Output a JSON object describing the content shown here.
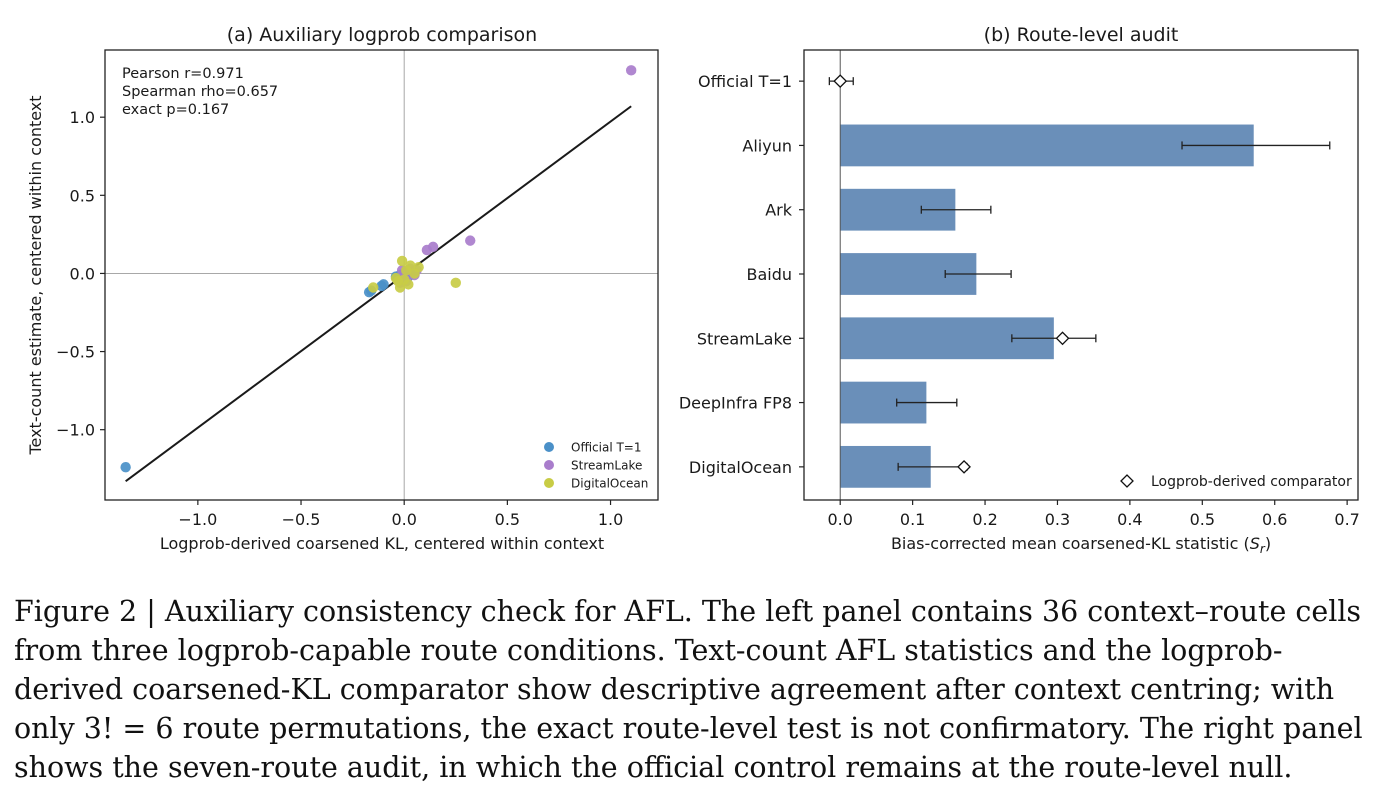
{
  "chart_data": [
    {
      "type": "scatter",
      "title": "(a) Auxiliary logprob comparison",
      "xlabel": "Logprob-derived coarsened KL, centered within context",
      "ylabel": "Text-count estimate, centered within context",
      "xlim": [
        -1.45,
        1.23
      ],
      "ylim": [
        -1.45,
        1.43
      ],
      "xticks": [
        -1.0,
        -0.5,
        0.0,
        0.5,
        1.0
      ],
      "xtick_labels": [
        "−1.0",
        "−0.5",
        "0.0",
        "0.5",
        "1.0"
      ],
      "yticks": [
        -1.0,
        -0.5,
        0.0,
        0.5,
        1.0
      ],
      "ytick_labels": [
        "−1.0",
        "−0.5",
        "0.0",
        "0.5",
        "1.0"
      ],
      "grid": false,
      "reference_lines": [
        {
          "axis": "x",
          "value": 0
        },
        {
          "axis": "y",
          "value": 0
        }
      ],
      "stats": [
        "Pearson r=0.971",
        "Spearman rho=0.657",
        "exact p=0.167"
      ],
      "fit_line": {
        "x": [
          -1.35,
          1.1
        ],
        "y": [
          -1.33,
          1.07
        ]
      },
      "legend_position": "lower-right",
      "series": [
        {
          "name": "Official T=1",
          "color": "#4a90c8",
          "points": [
            [
              -1.35,
              -1.24
            ],
            [
              -0.17,
              -0.12
            ],
            [
              -0.16,
              -0.11
            ],
            [
              -0.11,
              -0.08
            ],
            [
              -0.1,
              -0.07
            ],
            [
              -0.04,
              -0.02
            ],
            [
              -0.03,
              -0.04
            ],
            [
              -0.02,
              -0.01
            ],
            [
              -0.01,
              -0.03
            ],
            [
              0.0,
              0.0
            ],
            [
              0.02,
              -0.02
            ],
            [
              0.01,
              0.01
            ]
          ]
        },
        {
          "name": "StreamLake",
          "color": "#a97dcc",
          "points": [
            [
              1.1,
              1.3
            ],
            [
              0.32,
              0.21
            ],
            [
              0.14,
              0.17
            ],
            [
              0.11,
              0.15
            ],
            [
              0.05,
              -0.01
            ],
            [
              0.03,
              0.03
            ],
            [
              0.01,
              -0.05
            ],
            [
              -0.02,
              -0.06
            ],
            [
              0.06,
              0.02
            ],
            [
              -0.01,
              0.02
            ],
            [
              0.0,
              -0.03
            ],
            [
              0.04,
              0.01
            ]
          ]
        },
        {
          "name": "DigitalOcean",
          "color": "#c8cc45",
          "points": [
            [
              0.25,
              -0.06
            ],
            [
              -0.01,
              0.08
            ],
            [
              0.07,
              0.04
            ],
            [
              -0.15,
              -0.09
            ],
            [
              -0.02,
              -0.09
            ],
            [
              0.02,
              -0.07
            ],
            [
              0.0,
              -0.04
            ],
            [
              -0.03,
              -0.05
            ],
            [
              0.03,
              0.05
            ],
            [
              0.01,
              0.02
            ],
            [
              -0.04,
              -0.03
            ],
            [
              0.05,
              0.0
            ]
          ]
        }
      ]
    },
    {
      "type": "bar",
      "orientation": "horizontal",
      "title": "(b) Route-level audit",
      "xlabel": "Bias-corrected mean coarsened-KL statistic (",
      "xlabel_symbol": "S",
      "xlabel_subscript": "r",
      "xlabel_suffix": ")",
      "xlim": [
        -0.05,
        0.715
      ],
      "xticks": [
        0.0,
        0.1,
        0.2,
        0.3,
        0.4,
        0.5,
        0.6,
        0.7
      ],
      "xtick_labels": [
        "0.0",
        "0.1",
        "0.2",
        "0.3",
        "0.4",
        "0.5",
        "0.6",
        "0.7"
      ],
      "grid": false,
      "categories": [
        "Official T=1",
        "Aliyun",
        "Ark",
        "Baidu",
        "StreamLake",
        "DeepInfra FP8",
        "DigitalOcean"
      ],
      "values": [
        null,
        0.571,
        0.159,
        0.188,
        0.295,
        0.119,
        0.125
      ],
      "error_low": [
        -0.015,
        0.472,
        0.112,
        0.145,
        0.237,
        0.078,
        0.08
      ],
      "error_high": [
        0.018,
        0.676,
        0.208,
        0.236,
        0.353,
        0.161,
        0.175
      ],
      "comparator": [
        0.0,
        null,
        null,
        null,
        0.307,
        null,
        0.171
      ],
      "bar_color": "#6a8fb9",
      "legend_label": "Logprob-derived comparator",
      "legend_position": "lower-right"
    }
  ],
  "caption": "Figure 2 | Auxiliary consistency check for AFL. The left panel contains 36 context–route cells from three logprob-capable route conditions. Text-count AFL statistics and the logprob-derived coarsened-KL comparator show descriptive agreement after context centring; with only 3! = 6 route permutations, the exact route-level test is not confirmatory. The right panel shows the seven-route audit, in which the official control remains at the route-level null."
}
